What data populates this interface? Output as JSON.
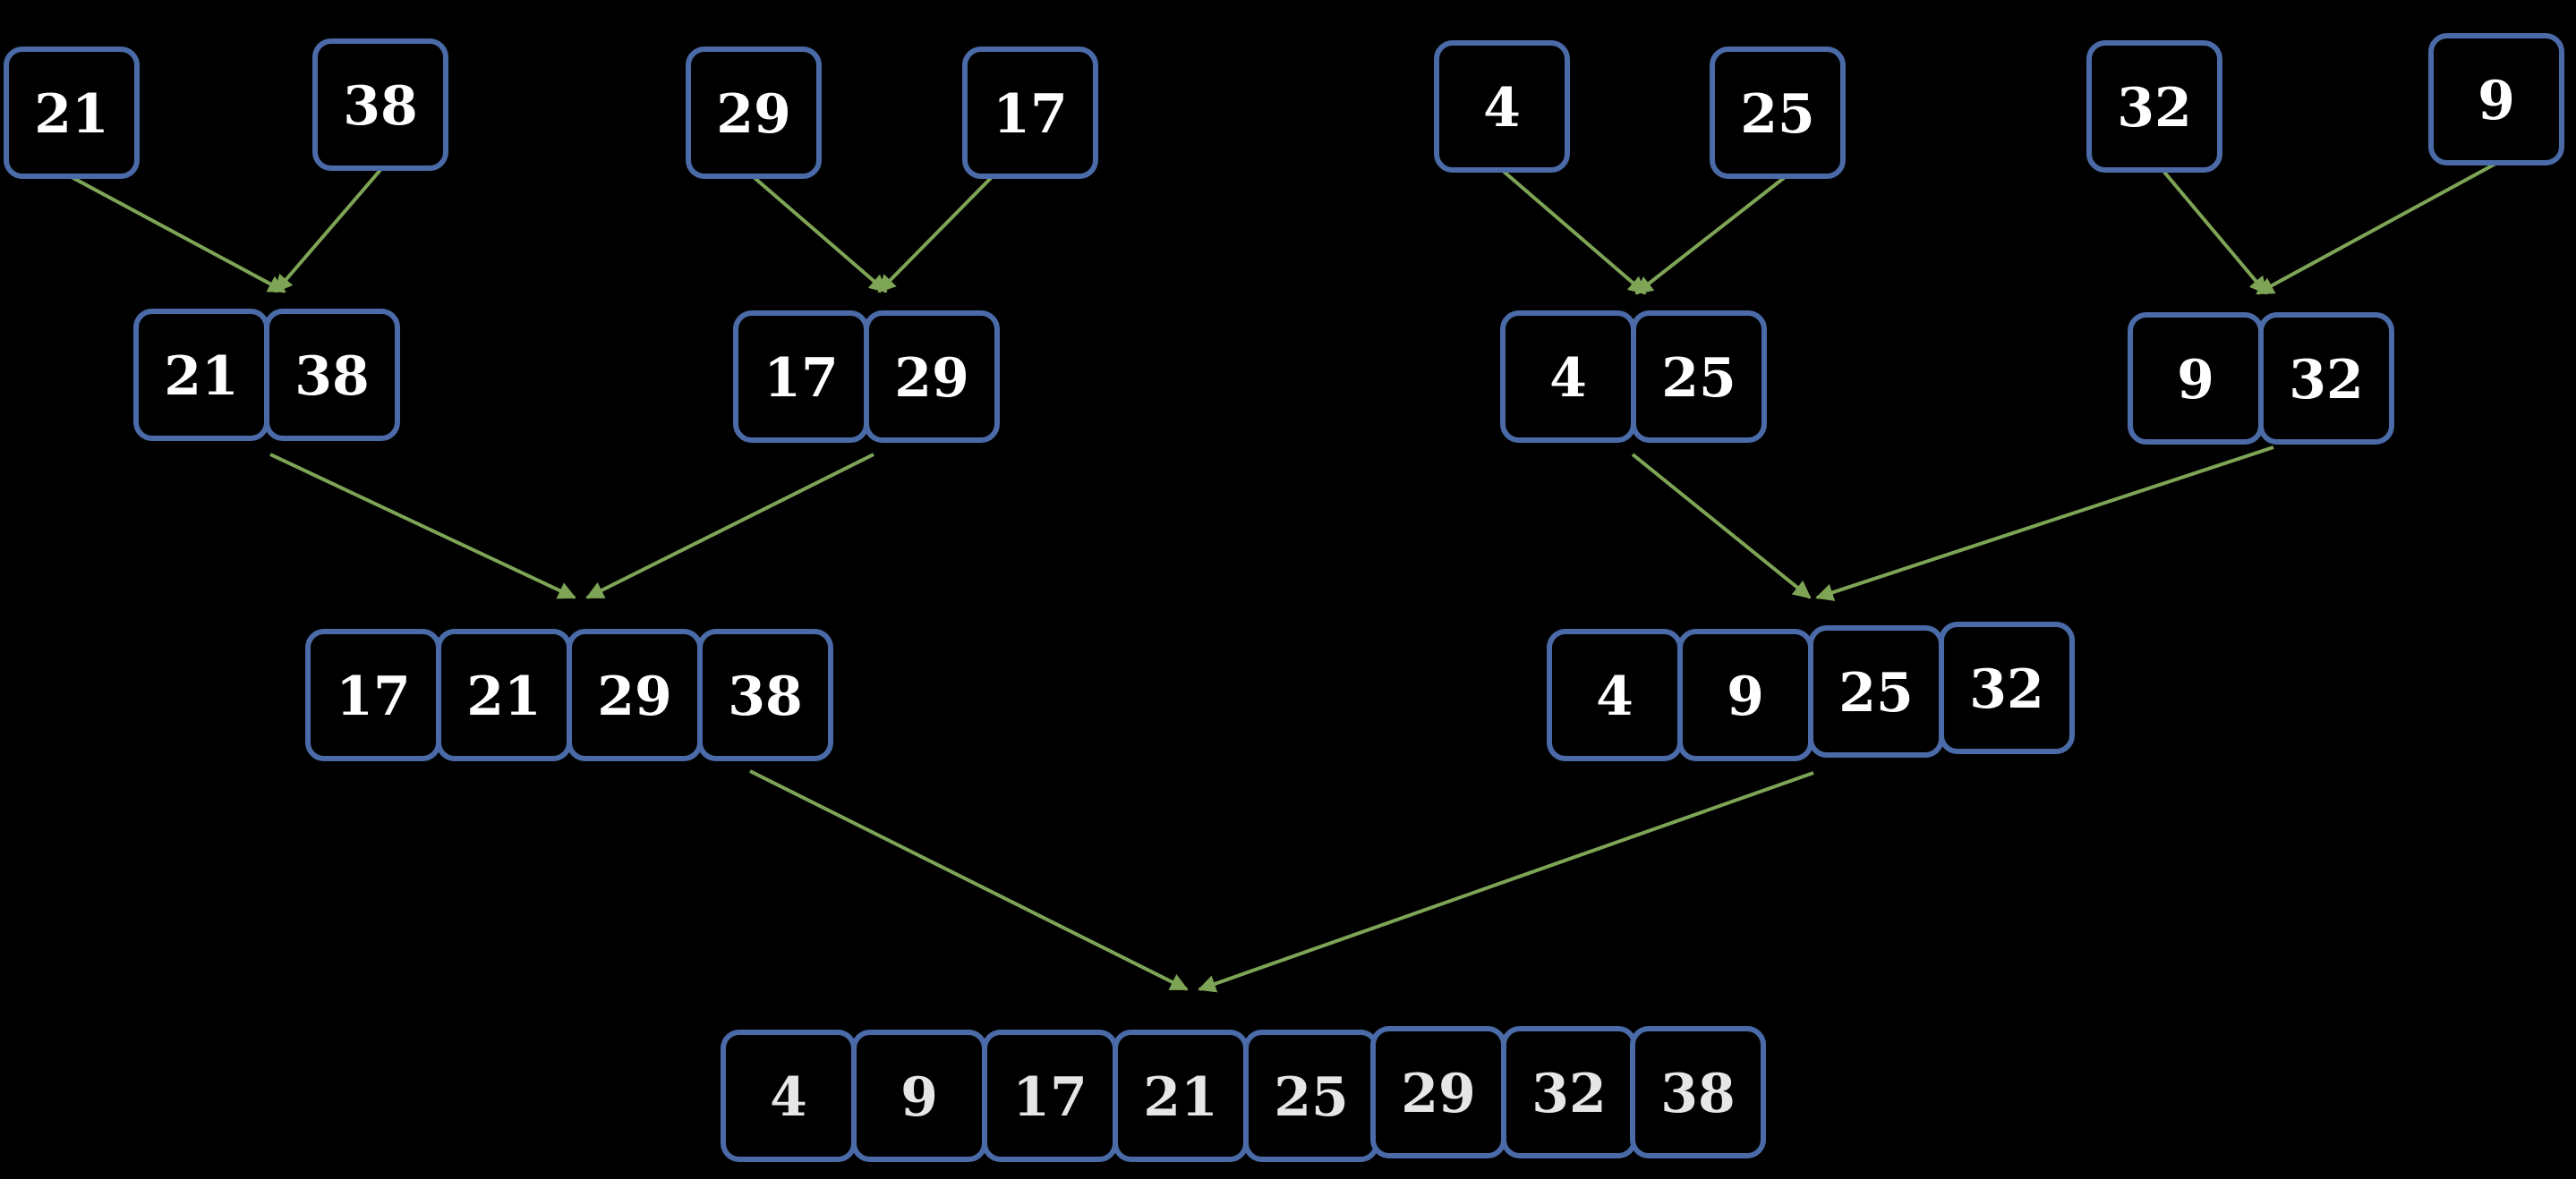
{
  "colors": {
    "background": "#000000",
    "box_border": "#4a6aa8",
    "arrow": "#7ea556",
    "text": "#ffffff"
  },
  "levels": [
    {
      "name": "singles",
      "groups": [
        [
          "21"
        ],
        [
          "38"
        ],
        [
          "29"
        ],
        [
          "17"
        ],
        [
          "4"
        ],
        [
          "25"
        ],
        [
          "32"
        ],
        [
          "9"
        ]
      ]
    },
    {
      "name": "pairs",
      "groups": [
        [
          "21",
          "38"
        ],
        [
          "17",
          "29"
        ],
        [
          "4",
          "25"
        ],
        [
          "9",
          "32"
        ]
      ]
    },
    {
      "name": "quads",
      "groups": [
        [
          "17",
          "21",
          "29",
          "38"
        ],
        [
          "4",
          "9",
          "25",
          "32"
        ]
      ]
    },
    {
      "name": "merged",
      "groups": [
        [
          "4",
          "9",
          "17",
          "21",
          "25",
          "29",
          "32",
          "38"
        ]
      ]
    }
  ]
}
